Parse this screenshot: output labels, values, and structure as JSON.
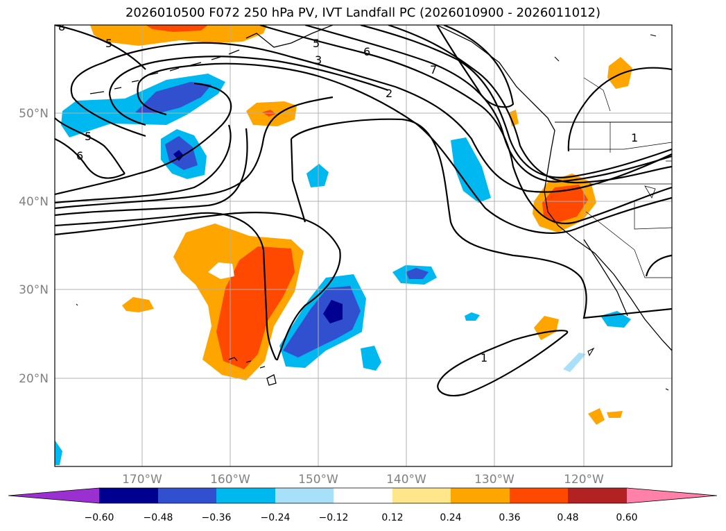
{
  "title": "2026010500 F072 250 hPa PV, IVT Landfall PC (2026010900 - 2026011012)",
  "map": {
    "lon_labels": [
      "170°W",
      "160°W",
      "150°W",
      "140°W",
      "130°W",
      "120°W"
    ],
    "lat_labels": [
      "50°N",
      "40°N",
      "30°N",
      "20°N"
    ],
    "contour_labels": [
      "5",
      "6",
      "5",
      "6",
      "7",
      "3",
      "2",
      "5",
      "1",
      "1",
      "8"
    ]
  },
  "colorbar": {
    "colors": [
      "#9b30d0",
      "#000090",
      "#3050d0",
      "#00b8f0",
      "#a8e0fa",
      "#ffffff",
      "#ffe68a",
      "#ffa500",
      "#ff4800",
      "#b22222",
      "#ff80a8"
    ],
    "tick_labels": [
      "−0.60",
      "−0.48",
      "−0.36",
      "−0.24",
      "−0.12",
      "0.12",
      "0.24",
      "0.36",
      "0.48",
      "0.60"
    ]
  }
}
